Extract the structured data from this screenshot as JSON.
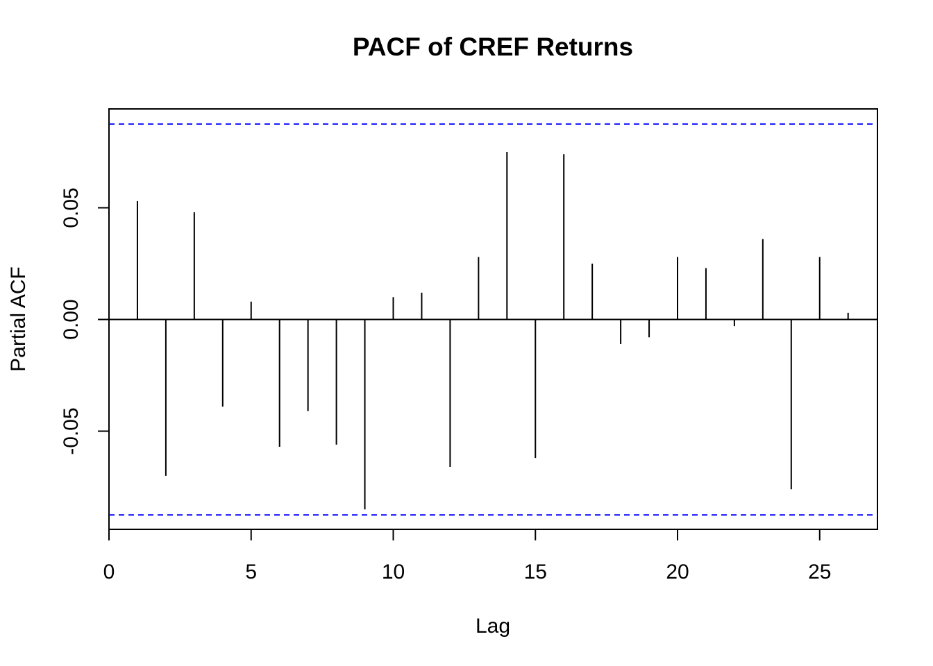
{
  "chart_data": {
    "type": "bar",
    "title": "PACF of CREF Returns",
    "xlabel": "Lag",
    "ylabel": "Partial ACF",
    "xlim": [
      0,
      27
    ],
    "ylim": [
      -0.095,
      0.095
    ],
    "xticks": [
      0,
      5,
      10,
      15,
      20,
      25
    ],
    "yticks": [
      -0.05,
      0.0,
      0.05
    ],
    "ytick_labels": [
      "-0.05",
      "0.00",
      "0.05"
    ],
    "series": [
      {
        "lags": [
          1,
          2,
          3,
          4,
          5,
          6,
          7,
          8,
          9,
          10,
          11,
          12,
          13,
          14,
          15,
          16,
          17,
          18,
          19,
          20,
          21,
          22,
          23,
          24,
          25,
          26
        ],
        "values": [
          0.053,
          -0.07,
          0.048,
          -0.039,
          0.008,
          -0.057,
          -0.041,
          -0.056,
          -0.085,
          0.01,
          0.012,
          -0.066,
          0.028,
          0.075,
          -0.062,
          0.074,
          0.025,
          -0.011,
          -0.008,
          0.028,
          0.023,
          -0.003,
          0.036,
          -0.076,
          0.028,
          0.003
        ]
      }
    ],
    "confidence_limit": 0.0875,
    "confidence_color": "#0000ff",
    "bar_color": "#000000",
    "grid": false
  }
}
